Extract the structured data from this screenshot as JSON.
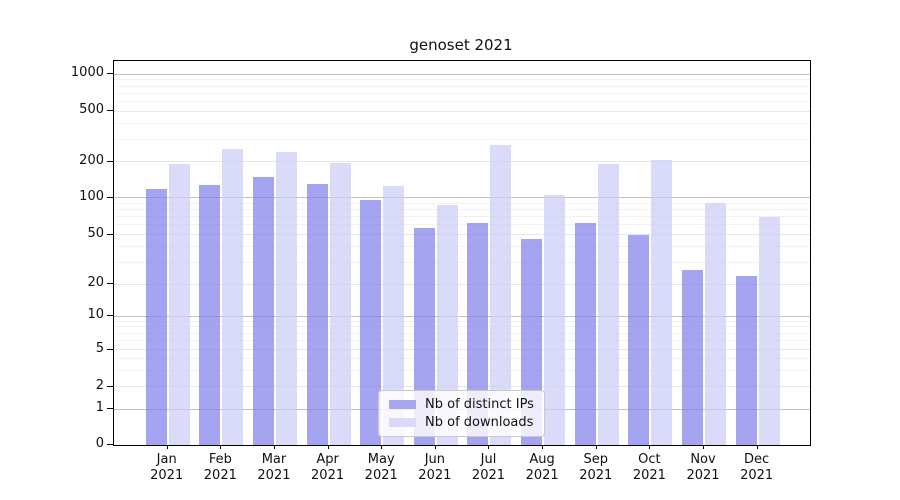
{
  "chart_data": {
    "type": "bar",
    "title": "genoset 2021",
    "categories": [
      "Jan",
      "Feb",
      "Mar",
      "Apr",
      "May",
      "Jun",
      "Jul",
      "Aug",
      "Sep",
      "Oct",
      "Nov",
      "Dec"
    ],
    "category_year": "2021",
    "series": [
      {
        "name": "Nb of distinct IPs",
        "color": "#a5a5f1",
        "fill": "rgba(126,126,235,0.7)",
        "values": [
          117,
          128,
          150,
          130,
          95,
          57,
          62,
          46,
          62,
          50,
          26,
          23
        ]
      },
      {
        "name": "Nb of downloads",
        "color": "#dadaf8",
        "fill": "rgba(202,202,247,0.7)",
        "values": [
          190,
          250,
          240,
          195,
          125,
          87,
          270,
          105,
          190,
          205,
          90,
          70
        ]
      }
    ],
    "xlabel": "",
    "ylabel": "",
    "yaxis": {
      "scale": "symlog",
      "ticks": [
        0,
        1,
        2,
        5,
        10,
        20,
        50,
        100,
        200,
        500,
        1000
      ],
      "range": [
        0,
        1300
      ]
    },
    "grid": true,
    "legend": {
      "position": "lower center",
      "items": [
        "Nb of distinct IPs",
        "Nb of downloads"
      ]
    }
  }
}
